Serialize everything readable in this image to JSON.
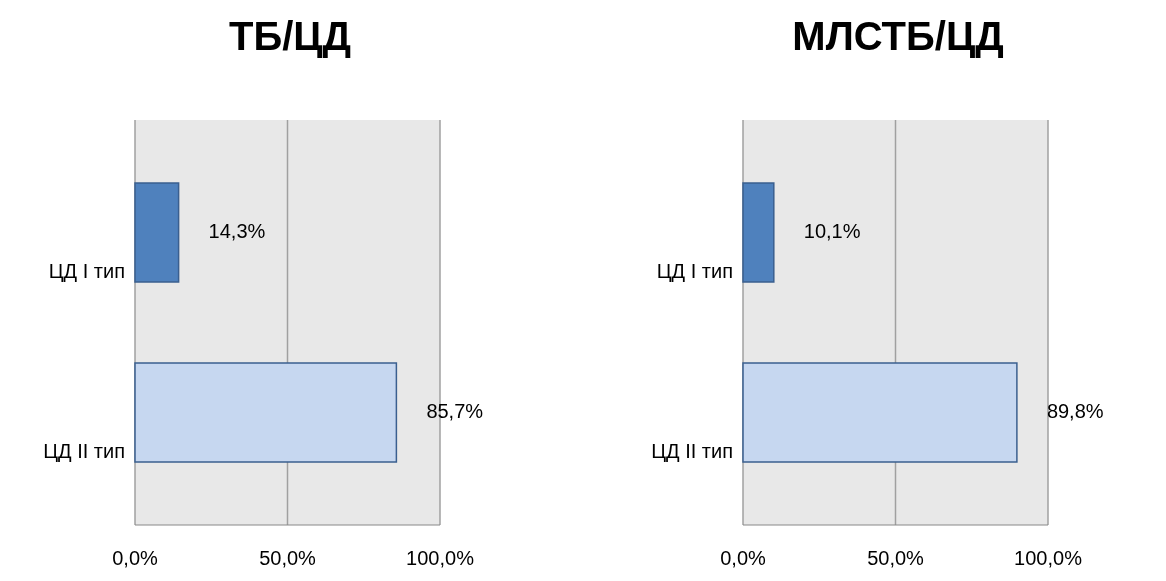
{
  "chart_data": [
    {
      "type": "bar",
      "orientation": "horizontal",
      "title": "ТБ/ЦД",
      "categories": [
        "ЦД I тип",
        "ЦД II тип"
      ],
      "values": [
        14.3,
        85.7
      ],
      "colors": [
        "#4f81bd",
        "#c6d7f0"
      ],
      "value_labels": [
        "14,3%",
        "85,7%"
      ],
      "xlim": [
        0,
        100
      ],
      "xticks": [
        {
          "value": 0,
          "label": "0,0%"
        },
        {
          "value": 50,
          "label": "50,0%"
        },
        {
          "value": 100,
          "label": "100,0%"
        }
      ],
      "grid": "x"
    },
    {
      "type": "bar",
      "orientation": "horizontal",
      "title": "МЛСТБ/ЦД",
      "categories": [
        "ЦД I тип",
        "ЦД II тип"
      ],
      "values": [
        10.1,
        89.8
      ],
      "colors": [
        "#4f81bd",
        "#c6d7f0"
      ],
      "value_labels": [
        "10,1%",
        "89,8%"
      ],
      "xlim": [
        0,
        100
      ],
      "xticks": [
        {
          "value": 0,
          "label": "0,0%"
        },
        {
          "value": 50,
          "label": "50,0%"
        },
        {
          "value": 100,
          "label": "100,0%"
        }
      ],
      "grid": "x"
    }
  ]
}
